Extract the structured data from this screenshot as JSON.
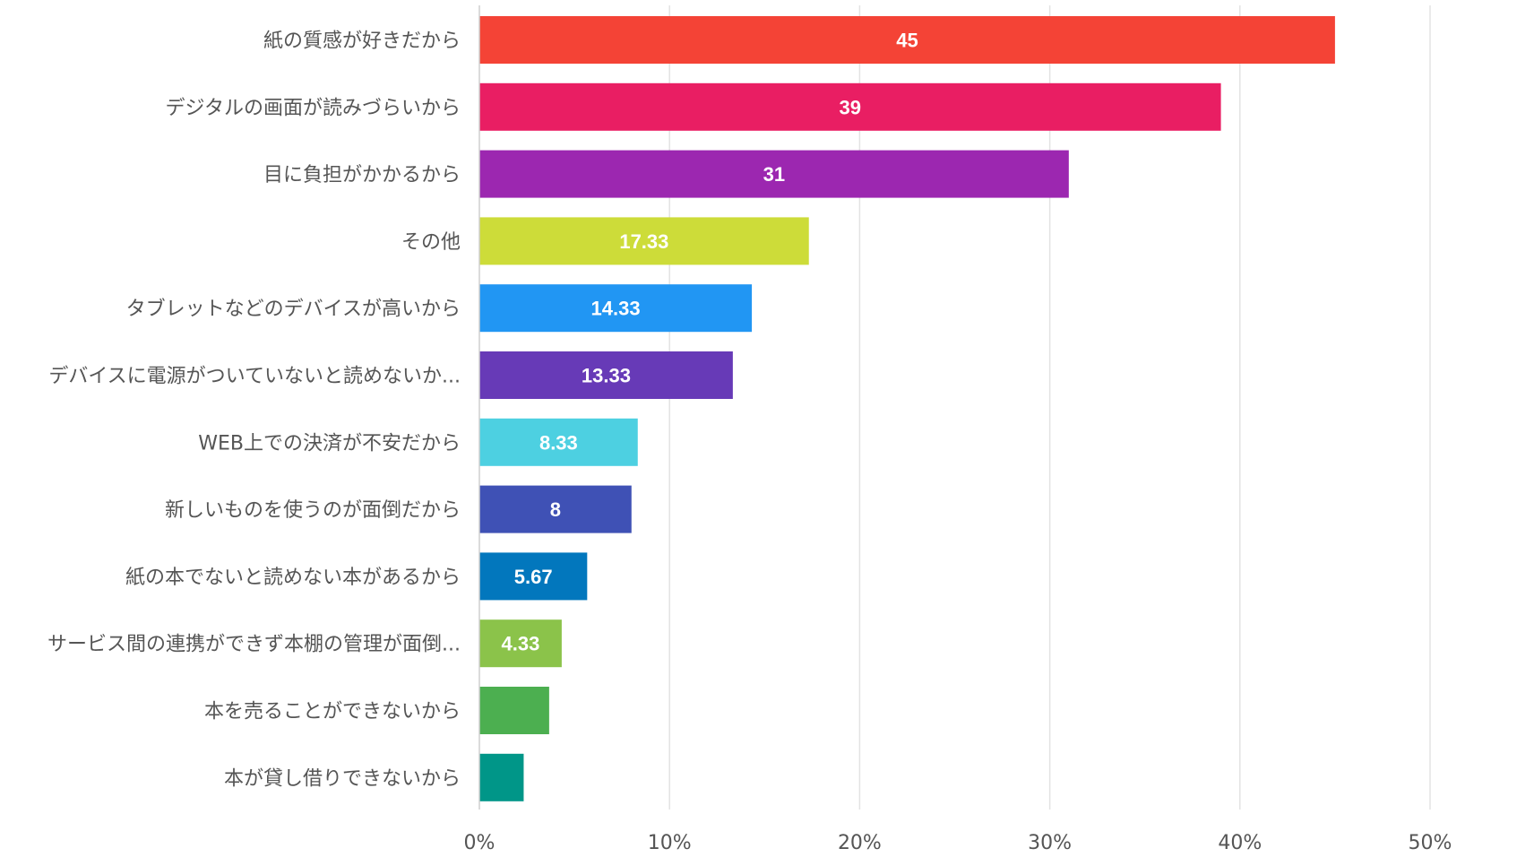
{
  "chart_data": {
    "type": "bar",
    "orientation": "horizontal",
    "title": "",
    "xlabel": "",
    "ylabel": "",
    "xlim": [
      0,
      55
    ],
    "x_ticks": [
      0,
      10,
      20,
      30,
      40,
      50
    ],
    "x_tick_labels": [
      "0%",
      "10%",
      "20%",
      "30%",
      "40%",
      "50%"
    ],
    "grid": true,
    "legend": "none",
    "categories": [
      "紙の質感が好きだから",
      "デジタルの画面が読みづらいから",
      "目に負担がかかるから",
      "その他",
      "タブレットなどのデバイスが高いから",
      "デバイスに電源がついていないと読めないか...",
      "WEB上での決済が不安だから",
      "新しいものを使うのが面倒だから",
      "紙の本でないと読めない本があるから",
      "サービス間の連携ができず本棚の管理が面倒...",
      "本を売ることができないから",
      "本が貸し借りできないから"
    ],
    "values": [
      45,
      39,
      31,
      17.33,
      14.33,
      13.33,
      8.33,
      8,
      5.67,
      4.33,
      3.67,
      2.33
    ],
    "data_labels": [
      "45",
      "39",
      "31",
      "17.33",
      "14.33",
      "13.33",
      "8.33",
      "8",
      "5.67",
      "4.33",
      "",
      ""
    ],
    "colors": [
      "#f44336",
      "#e91e63",
      "#9c27b0",
      "#cddc39",
      "#2196f3",
      "#673ab7",
      "#4dd0e1",
      "#3f51b5",
      "#0277bd",
      "#8bc34a",
      "#4caf50",
      "#009688"
    ]
  }
}
